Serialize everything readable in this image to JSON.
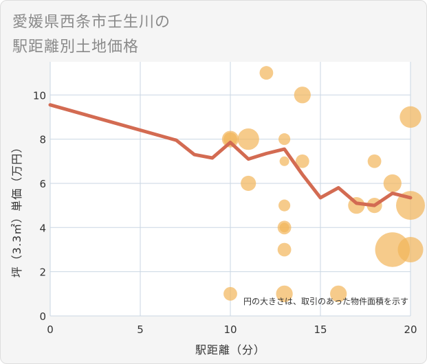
{
  "chart_data": {
    "type": "scatter",
    "title_lines": [
      "愛媛県西条市壬生川の",
      "駅距離別土地価格"
    ],
    "xlabel": "駅距離（分）",
    "ylabel": "坪（3.3㎡）単価（万円）",
    "xlim": [
      0,
      20
    ],
    "ylim": [
      0,
      11.5
    ],
    "xticks": [
      0,
      5,
      10,
      15,
      20
    ],
    "yticks": [
      0,
      2,
      4,
      6,
      8,
      10
    ],
    "grid": true,
    "note": "円の大きさは、取引のあった物件面積を示す",
    "colors": {
      "line": "#d36b52",
      "bubble": "#f2b55a",
      "grid": "#c9d6e3",
      "plot_bg": "#ffffff"
    },
    "line_series": {
      "x": [
        0,
        7,
        8,
        9,
        10,
        11,
        12,
        13,
        14,
        15,
        16,
        17,
        18,
        19,
        20
      ],
      "y": [
        9.55,
        7.95,
        7.3,
        7.15,
        7.85,
        7.1,
        7.35,
        7.55,
        6.4,
        5.35,
        5.8,
        5.1,
        5.0,
        5.55,
        5.35
      ]
    },
    "bubbles": [
      {
        "x": 12,
        "y": 11,
        "size": 2
      },
      {
        "x": 14,
        "y": 10,
        "size": 3
      },
      {
        "x": 20,
        "y": 9,
        "size": 5
      },
      {
        "x": 10,
        "y": 8,
        "size": 3
      },
      {
        "x": 10,
        "y": 8,
        "size": 2
      },
      {
        "x": 11,
        "y": 8,
        "size": 5
      },
      {
        "x": 13,
        "y": 8,
        "size": 1.5
      },
      {
        "x": 13,
        "y": 7,
        "size": 1
      },
      {
        "x": 14,
        "y": 7,
        "size": 2
      },
      {
        "x": 18,
        "y": 7,
        "size": 2
      },
      {
        "x": 11,
        "y": 6,
        "size": 2.5
      },
      {
        "x": 19,
        "y": 6,
        "size": 3.5
      },
      {
        "x": 13,
        "y": 5,
        "size": 1.5
      },
      {
        "x": 17,
        "y": 5,
        "size": 3
      },
      {
        "x": 18,
        "y": 5,
        "size": 2.5
      },
      {
        "x": 20,
        "y": 5,
        "size": 9
      },
      {
        "x": 13,
        "y": 4,
        "size": 2
      },
      {
        "x": 13,
        "y": 4,
        "size": 1
      },
      {
        "x": 13,
        "y": 3,
        "size": 2
      },
      {
        "x": 19,
        "y": 3,
        "size": 13
      },
      {
        "x": 20,
        "y": 3,
        "size": 7
      },
      {
        "x": 10,
        "y": 1,
        "size": 2
      },
      {
        "x": 13,
        "y": 1,
        "size": 3
      },
      {
        "x": 16,
        "y": 1,
        "size": 3
      }
    ]
  }
}
